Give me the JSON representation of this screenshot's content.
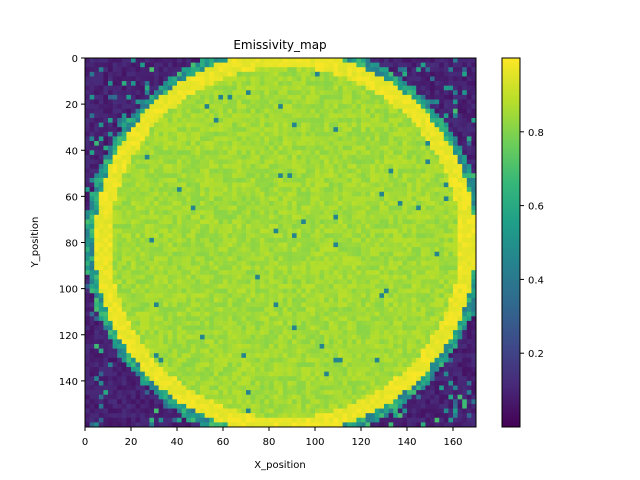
{
  "chart_data": {
    "type": "heatmap",
    "title": "Emissivity_map",
    "xlabel": "X_position",
    "ylabel": "Y_position",
    "xlim": [
      0,
      170
    ],
    "ylim": [
      160,
      0
    ],
    "y_axis_inverted": true,
    "x_ticks": [
      0,
      20,
      40,
      60,
      80,
      100,
      120,
      140,
      160
    ],
    "y_ticks": [
      0,
      20,
      40,
      60,
      80,
      100,
      120,
      140
    ],
    "colormap": "viridis",
    "colorbar": {
      "ticks": [
        0.2,
        0.4,
        0.6,
        0.8
      ],
      "range": [
        0.0,
        1.0
      ]
    },
    "grid": false,
    "description_regions": {
      "background_value": 0.05,
      "interior_value": 0.85,
      "rim_value": 0.97,
      "halo_value": 0.55,
      "circle_center": [
        87,
        80
      ],
      "circle_radius": 82
    }
  }
}
